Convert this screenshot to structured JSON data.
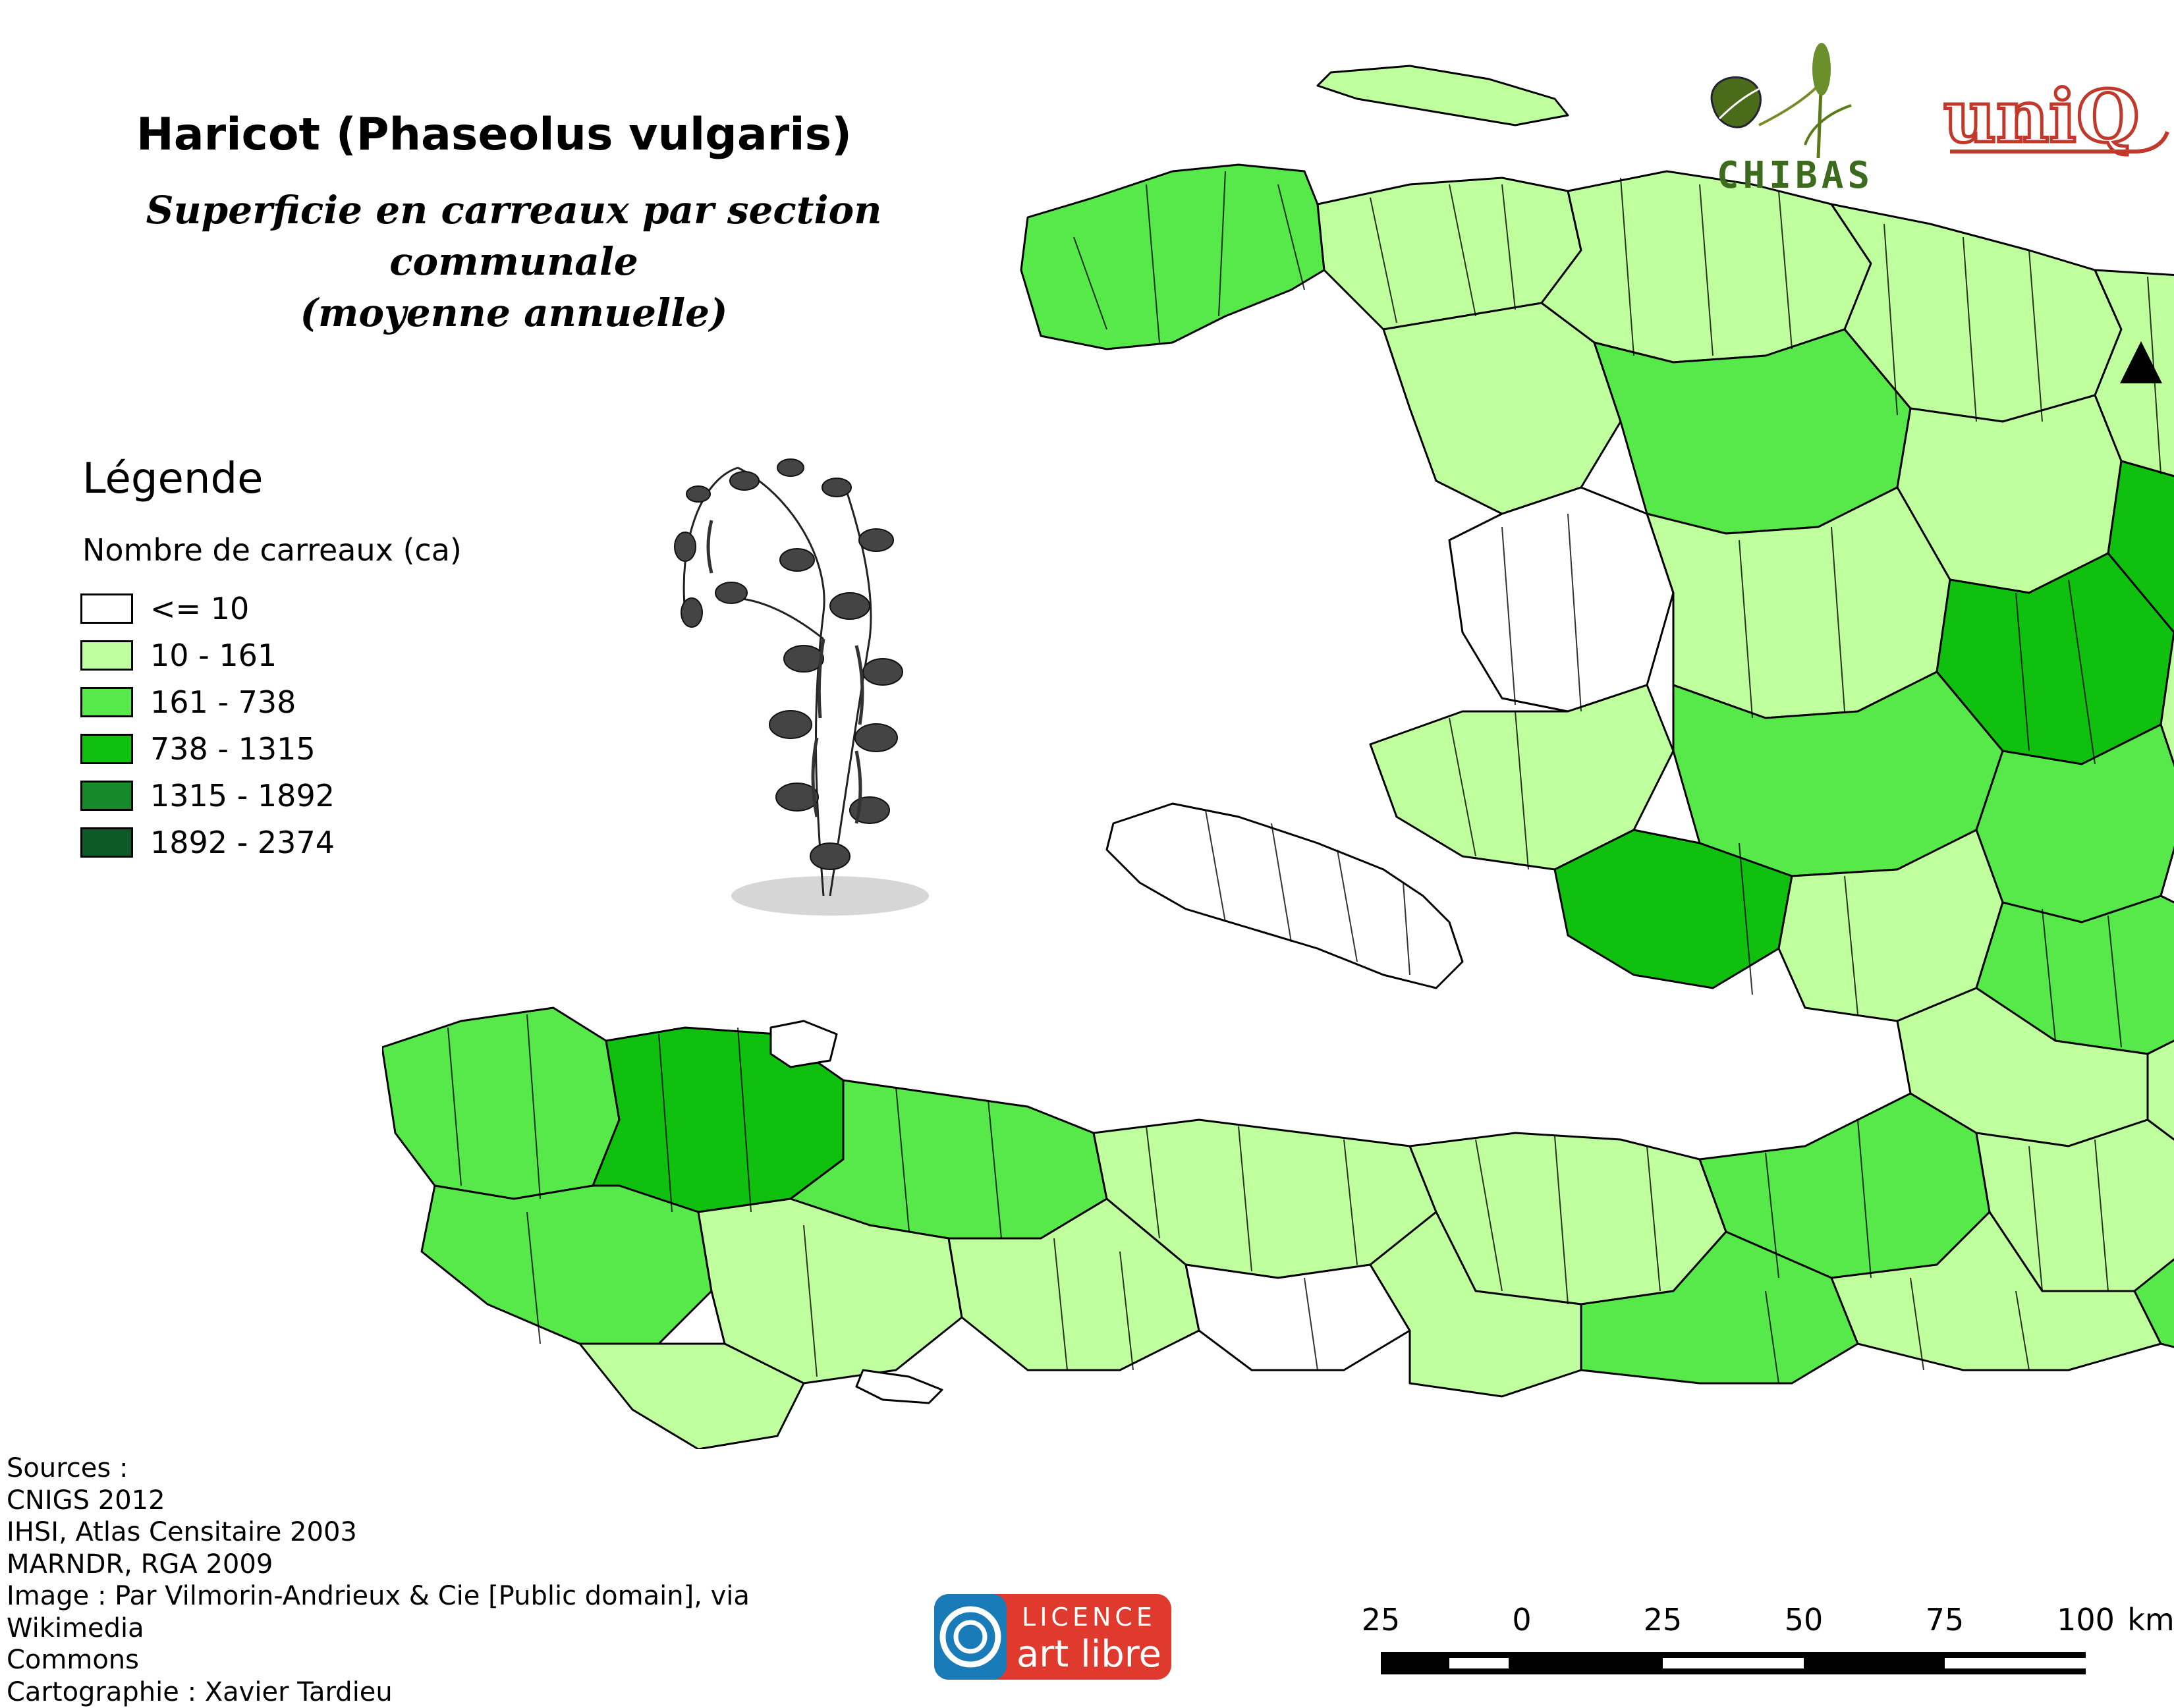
{
  "title": "Haricot (Phaseolus vulgaris)",
  "subtitle": "Superficie en carreaux par section communale\n(moyenne annuelle)",
  "legend": {
    "title": "Légende",
    "subtitle": "Nombre de carreaux (ca)",
    "items": [
      {
        "label": "<= 10",
        "color": "#ffffff"
      },
      {
        "label": "10 - 161",
        "color": "#c0ff9e"
      },
      {
        "label": "161 - 738",
        "color": "#57e84a"
      },
      {
        "label": "738 - 1315",
        "color": "#0fc00f"
      },
      {
        "label": "1315 - 1892",
        "color": "#168a2a"
      },
      {
        "label": "1892 - 2374",
        "color": "#0d5a26"
      }
    ]
  },
  "logos": {
    "chibas": "CHIBAS",
    "uniq": "uniQ",
    "licence_top": "LICENCE",
    "licence_bottom": "art libre"
  },
  "sources": "Sources :\nCNIGS 2012\nIHSI, Atlas Censitaire 2003\nMARNDR, RGA 2009\nImage : Par Vilmorin-Andrieux & Cie [Public domain], via Wikimedia\nCommons\nCartographie : Xavier Tardieu",
  "scale": {
    "ticks": [
      "25",
      "0",
      "25",
      "50",
      "75",
      "100"
    ],
    "unit": "km"
  },
  "icons": {
    "north_arrow": "north-arrow-icon",
    "plant": "bean-plant-illustration"
  }
}
